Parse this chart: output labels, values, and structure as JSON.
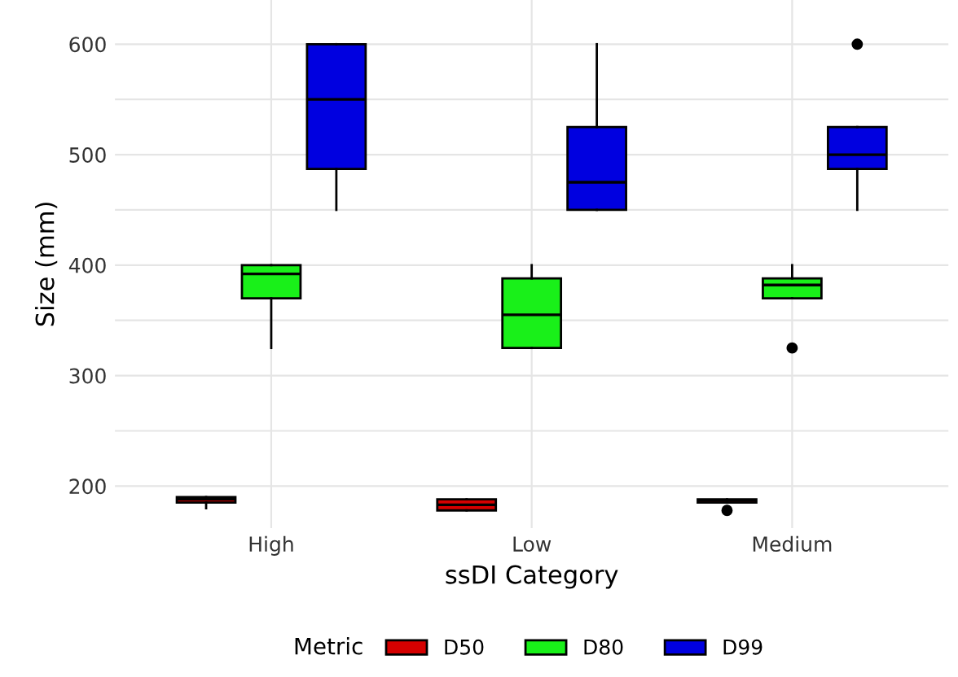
{
  "chart_data": {
    "type": "box",
    "xlabel": "ssDI Category",
    "ylabel": "Size (mm)",
    "legend_title": "Metric",
    "legend": "bottom",
    "grid": true,
    "categories": [
      "High",
      "Low",
      "Medium"
    ],
    "ylim": [
      162,
      640
    ],
    "yticks": [
      200,
      {
        "value": 250,
        "label": null
      },
      300,
      {
        "value": 350,
        "label": null
      },
      400,
      {
        "value": 450,
        "label": null
      },
      500,
      {
        "value": 550,
        "label": null
      },
      600
    ],
    "series": [
      {
        "name": "D50",
        "color": "#d40000",
        "boxes": [
          {
            "low": 180,
            "q1": 185,
            "median": 188,
            "q3": 190,
            "high": 190
          },
          {
            "low": 178,
            "q1": 178,
            "median": 183,
            "q3": 188,
            "high": 188
          },
          {
            "low": 185,
            "q1": 185,
            "median": 187,
            "q3": 188,
            "high": 188,
            "outliers": [
              178
            ]
          }
        ]
      },
      {
        "name": "D80",
        "color": "#19f019",
        "boxes": [
          {
            "low": 325,
            "q1": 370,
            "median": 392,
            "q3": 400,
            "high": 400
          },
          {
            "low": 325,
            "q1": 325,
            "median": 355,
            "q3": 388,
            "high": 400
          },
          {
            "low": 370,
            "q1": 370,
            "median": 382,
            "q3": 388,
            "high": 400,
            "outliers": [
              325
            ]
          }
        ]
      },
      {
        "name": "D99",
        "color": "#0000e0",
        "boxes": [
          {
            "low": 450,
            "q1": 487,
            "median": 550,
            "q3": 600,
            "high": 600
          },
          {
            "low": 450,
            "q1": 450,
            "median": 475,
            "q3": 525,
            "high": 600
          },
          {
            "low": 450,
            "q1": 487,
            "median": 500,
            "q3": 525,
            "high": 525,
            "outliers": [
              600
            ]
          }
        ]
      }
    ]
  }
}
